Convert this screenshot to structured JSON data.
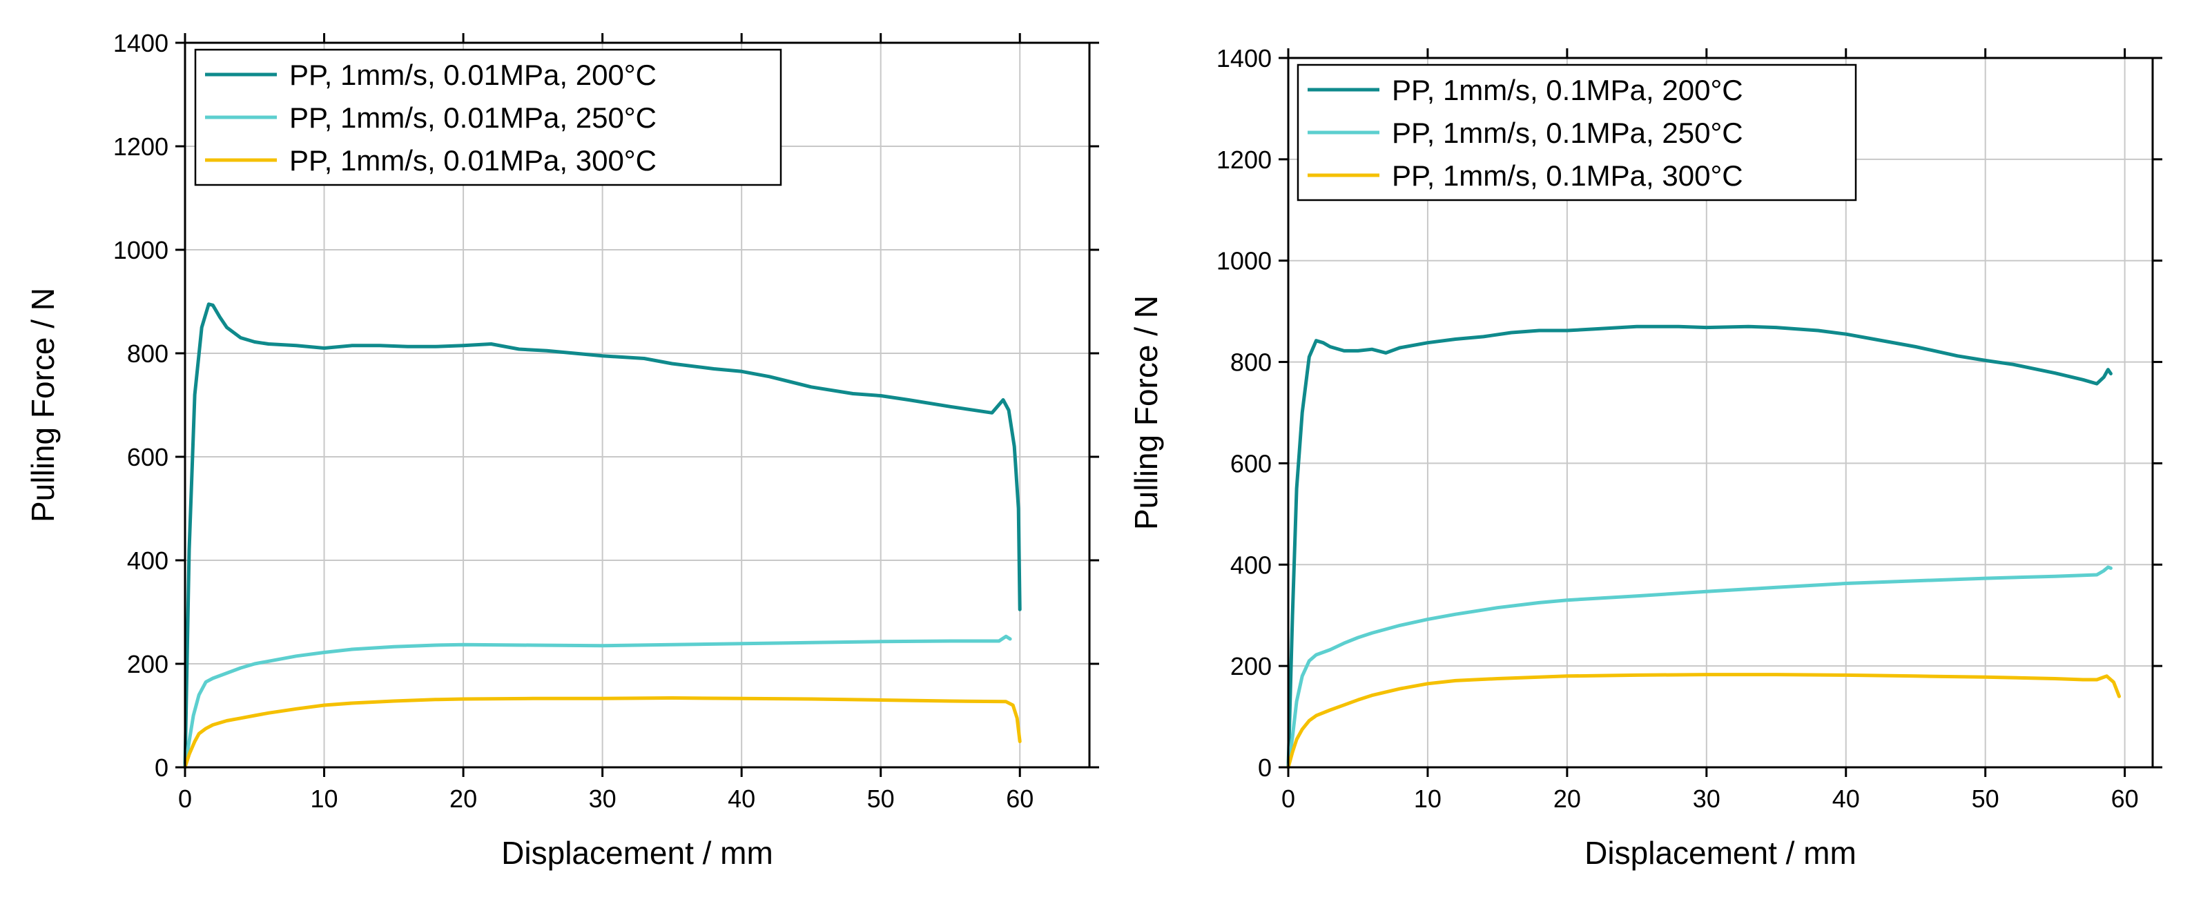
{
  "chart_data": [
    {
      "type": "line",
      "title": "",
      "xlabel": "Displacement / mm",
      "ylabel": "Pulling Force / N",
      "xlim": [
        0,
        65
      ],
      "ylim": [
        0,
        1400
      ],
      "xticks": [
        "0",
        "10",
        "20",
        "30",
        "40",
        "50",
        "60"
      ],
      "yticks": [
        "0",
        "200",
        "400",
        "600",
        "800",
        "1000",
        "1200",
        "1400"
      ],
      "grid": true,
      "legend_position": "top-left",
      "series": [
        {
          "name": "PP, 1mm/s, 0.01MPa, 200°C",
          "color": "#0f8a8c",
          "x": [
            0,
            0.3,
            0.7,
            1.2,
            1.7,
            2,
            2.5,
            3,
            4,
            5,
            6,
            8,
            10,
            12,
            14,
            16,
            18,
            20,
            22,
            24,
            26,
            28,
            30,
            33,
            35,
            38,
            40,
            42,
            45,
            48,
            50,
            52,
            55,
            58,
            58.8,
            59.2,
            59.6,
            59.9,
            60
          ],
          "y": [
            0,
            420,
            720,
            850,
            895,
            893,
            870,
            850,
            830,
            822,
            818,
            815,
            810,
            815,
            815,
            813,
            813,
            815,
            818,
            808,
            805,
            800,
            795,
            790,
            780,
            770,
            765,
            755,
            735,
            722,
            718,
            710,
            697,
            685,
            710,
            690,
            620,
            500,
            305
          ]
        },
        {
          "name": "PP, 1mm/s, 0.01MPa, 250°C",
          "color": "#5ccfcf",
          "x": [
            0,
            0.3,
            0.6,
            1,
            1.5,
            2,
            3,
            4,
            5,
            6,
            8,
            10,
            12,
            15,
            18,
            20,
            25,
            30,
            35,
            40,
            45,
            50,
            55,
            58.5,
            59,
            59.3
          ],
          "y": [
            0,
            50,
            100,
            140,
            165,
            172,
            182,
            192,
            200,
            205,
            215,
            222,
            228,
            233,
            236,
            237,
            236,
            235,
            237,
            239,
            241,
            243,
            244,
            244,
            253,
            248
          ]
        },
        {
          "name": "PP, 1mm/s, 0.01MPa, 300°C",
          "color": "#f5c000",
          "x": [
            0,
            0.3,
            0.7,
            1,
            1.5,
            2,
            3,
            4,
            5,
            6,
            8,
            10,
            12,
            15,
            18,
            20,
            25,
            30,
            35,
            40,
            45,
            50,
            55,
            59,
            59.5,
            59.8,
            60
          ],
          "y": [
            0,
            25,
            50,
            65,
            75,
            82,
            90,
            95,
            100,
            105,
            113,
            120,
            124,
            128,
            131,
            132,
            133,
            133,
            134,
            133,
            132,
            130,
            128,
            127,
            120,
            95,
            50
          ]
        }
      ]
    },
    {
      "type": "line",
      "title": "",
      "xlabel": "Displacement / mm",
      "ylabel": "Pulling Force / N",
      "xlim": [
        0,
        62
      ],
      "ylim": [
        0,
        1400
      ],
      "xticks": [
        "0",
        "10",
        "20",
        "30",
        "40",
        "50",
        "60"
      ],
      "yticks": [
        "0",
        "200",
        "400",
        "600",
        "800",
        "1000",
        "1200",
        "1400"
      ],
      "grid": true,
      "legend_position": "top-left",
      "series": [
        {
          "name": "PP, 1mm/s, 0.1MPa, 200°C",
          "color": "#0f8a8c",
          "x": [
            0,
            0.3,
            0.6,
            1,
            1.5,
            2,
            2.5,
            3,
            4,
            5,
            6,
            7,
            8,
            10,
            12,
            14,
            16,
            18,
            20,
            22,
            25,
            28,
            30,
            33,
            35,
            38,
            40,
            42,
            45,
            48,
            50,
            52,
            55,
            57,
            58,
            58.5,
            58.8,
            59
          ],
          "y": [
            0,
            300,
            550,
            700,
            810,
            842,
            838,
            830,
            822,
            822,
            825,
            818,
            828,
            838,
            845,
            850,
            858,
            862,
            862,
            865,
            870,
            870,
            868,
            870,
            868,
            862,
            855,
            845,
            830,
            812,
            803,
            795,
            778,
            765,
            757,
            770,
            785,
            777
          ]
        },
        {
          "name": "PP, 1mm/s, 0.1MPa, 250°C",
          "color": "#5ccfcf",
          "x": [
            0,
            0.3,
            0.6,
            1,
            1.5,
            2,
            3,
            4,
            5,
            6,
            8,
            10,
            12,
            15,
            18,
            20,
            25,
            30,
            35,
            40,
            45,
            50,
            55,
            58,
            58.5,
            58.8,
            59
          ],
          "y": [
            0,
            60,
            130,
            180,
            210,
            222,
            232,
            245,
            256,
            265,
            280,
            292,
            302,
            315,
            325,
            330,
            338,
            347,
            355,
            363,
            368,
            373,
            377,
            380,
            388,
            395,
            393
          ]
        },
        {
          "name": "PP, 1mm/s, 0.1MPa, 300°C",
          "color": "#f5c000",
          "x": [
            0,
            0.3,
            0.6,
            1,
            1.5,
            2,
            3,
            4,
            5,
            6,
            8,
            10,
            12,
            15,
            18,
            20,
            25,
            30,
            35,
            40,
            45,
            50,
            55,
            57,
            58,
            58.7,
            59.2,
            59.6
          ],
          "y": [
            0,
            30,
            55,
            75,
            92,
            102,
            113,
            123,
            133,
            142,
            155,
            165,
            171,
            175,
            178,
            180,
            182,
            183,
            183,
            182,
            180,
            178,
            175,
            173,
            173,
            180,
            168,
            140
          ]
        }
      ]
    }
  ]
}
